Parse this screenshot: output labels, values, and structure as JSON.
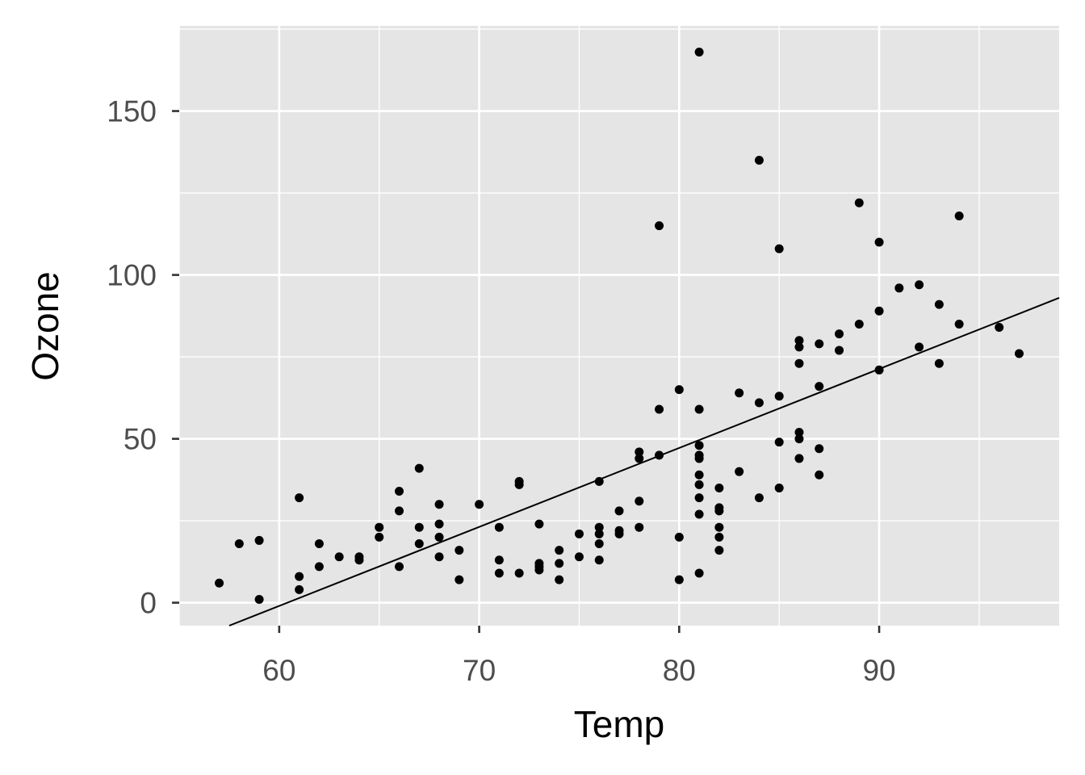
{
  "chart_data": {
    "type": "scatter",
    "title": "",
    "xlabel": "Temp",
    "ylabel": "Ozone",
    "xlim": [
      55,
      99
    ],
    "ylim": [
      -7,
      176
    ],
    "x_ticks": [
      60,
      70,
      80,
      90
    ],
    "y_ticks": [
      0,
      50,
      100,
      150
    ],
    "x_minor_ticks": [
      55,
      65,
      75,
      85,
      95
    ],
    "y_minor_ticks": [
      25,
      75,
      125,
      175
    ],
    "grid": true,
    "legend": "none",
    "colors": {
      "panel_background": "#e5e5e5",
      "grid": "#ffffff",
      "points": "#000000",
      "fit_line": "#000000",
      "tick_text": "#4d4d4d",
      "axis_title": "#000000"
    },
    "fit_line": {
      "type": "linear",
      "x": [
        57.5,
        99
      ],
      "y": [
        -7,
        93
      ]
    },
    "points": [
      [
        57,
        6
      ],
      [
        58,
        18
      ],
      [
        59,
        19
      ],
      [
        59,
        1
      ],
      [
        61,
        32
      ],
      [
        61,
        8
      ],
      [
        61,
        4
      ],
      [
        62,
        18
      ],
      [
        62,
        11
      ],
      [
        63,
        14
      ],
      [
        64,
        14
      ],
      [
        64,
        13
      ],
      [
        65,
        23
      ],
      [
        65,
        20
      ],
      [
        66,
        34
      ],
      [
        66,
        28
      ],
      [
        66,
        11
      ],
      [
        67,
        41
      ],
      [
        67,
        23
      ],
      [
        67,
        18
      ],
      [
        68,
        30
      ],
      [
        68,
        24
      ],
      [
        68,
        20
      ],
      [
        68,
        14
      ],
      [
        69,
        16
      ],
      [
        69,
        7
      ],
      [
        70,
        30
      ],
      [
        71,
        23
      ],
      [
        71,
        13
      ],
      [
        71,
        9
      ],
      [
        72,
        37
      ],
      [
        72,
        36
      ],
      [
        72,
        9
      ],
      [
        73,
        24
      ],
      [
        73,
        12
      ],
      [
        73,
        11
      ],
      [
        73,
        10
      ],
      [
        74,
        16
      ],
      [
        74,
        12
      ],
      [
        74,
        7
      ],
      [
        75,
        21
      ],
      [
        75,
        14
      ],
      [
        76,
        37
      ],
      [
        76,
        23
      ],
      [
        76,
        21
      ],
      [
        76,
        18
      ],
      [
        76,
        13
      ],
      [
        77,
        28
      ],
      [
        77,
        22
      ],
      [
        77,
        21
      ],
      [
        78,
        46
      ],
      [
        78,
        44
      ],
      [
        78,
        31
      ],
      [
        78,
        23
      ],
      [
        79,
        115
      ],
      [
        79,
        59
      ],
      [
        79,
        45
      ],
      [
        80,
        65
      ],
      [
        80,
        20
      ],
      [
        80,
        7
      ],
      [
        81,
        168
      ],
      [
        81,
        59
      ],
      [
        81,
        48
      ],
      [
        81,
        45
      ],
      [
        81,
        44
      ],
      [
        81,
        39
      ],
      [
        81,
        36
      ],
      [
        81,
        32
      ],
      [
        81,
        27
      ],
      [
        81,
        9
      ],
      [
        82,
        35
      ],
      [
        82,
        29
      ],
      [
        82,
        28
      ],
      [
        82,
        23
      ],
      [
        82,
        20
      ],
      [
        82,
        16
      ],
      [
        83,
        64
      ],
      [
        83,
        40
      ],
      [
        84,
        135
      ],
      [
        84,
        61
      ],
      [
        84,
        32
      ],
      [
        85,
        108
      ],
      [
        85,
        63
      ],
      [
        85,
        49
      ],
      [
        85,
        35
      ],
      [
        86,
        80
      ],
      [
        86,
        78
      ],
      [
        86,
        73
      ],
      [
        86,
        52
      ],
      [
        86,
        50
      ],
      [
        86,
        44
      ],
      [
        87,
        79
      ],
      [
        87,
        66
      ],
      [
        87,
        47
      ],
      [
        87,
        39
      ],
      [
        88,
        82
      ],
      [
        88,
        77
      ],
      [
        89,
        122
      ],
      [
        89,
        85
      ],
      [
        90,
        110
      ],
      [
        90,
        89
      ],
      [
        90,
        71
      ],
      [
        91,
        96
      ],
      [
        92,
        97
      ],
      [
        92,
        78
      ],
      [
        93,
        91
      ],
      [
        93,
        73
      ],
      [
        94,
        118
      ],
      [
        94,
        85
      ],
      [
        96,
        84
      ],
      [
        97,
        76
      ]
    ]
  }
}
